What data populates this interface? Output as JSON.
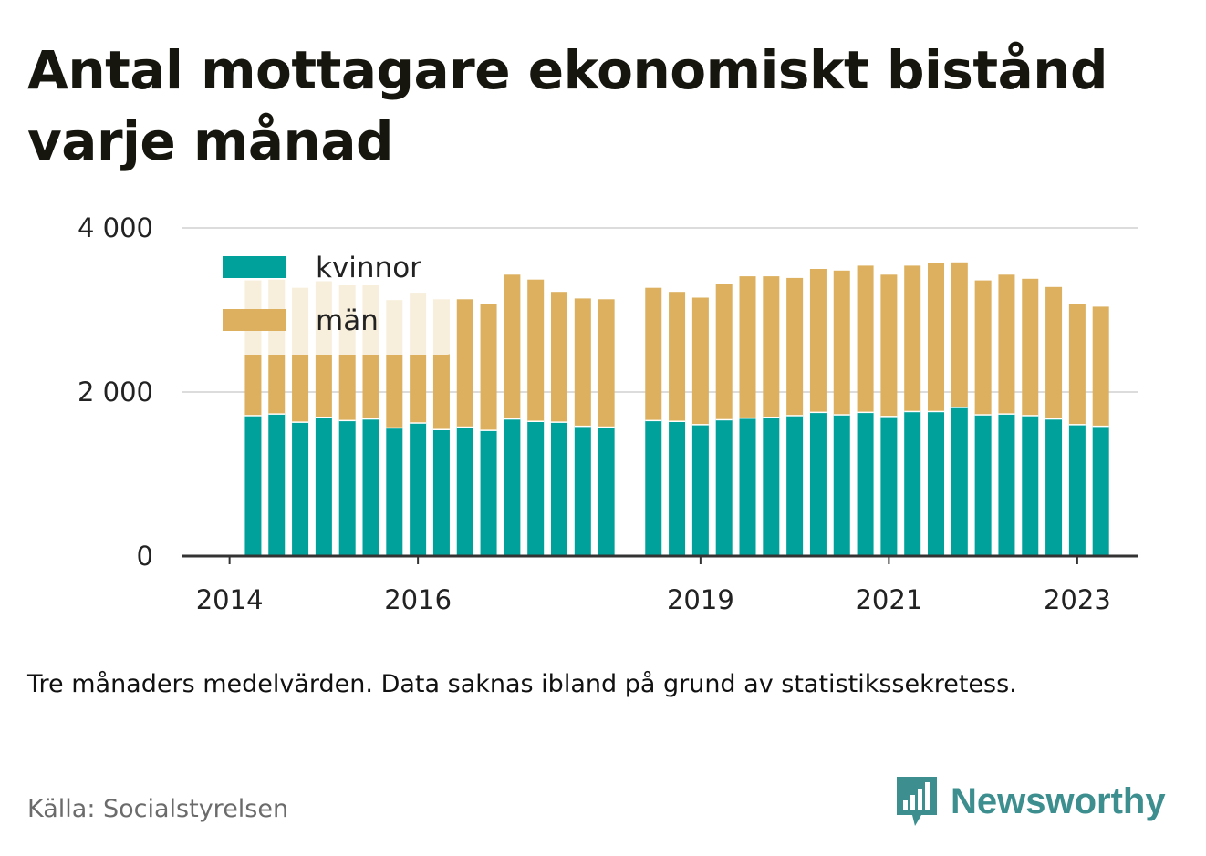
{
  "title": "Antal mottagare ekonomiskt bistånd varje månad",
  "subtitle": "Tre månaders medelvärden. Data saknas ibland på grund av statistikssekretess.",
  "source": "Källa: Socialstyrelsen",
  "brand": {
    "name": "Newsworthy",
    "icon": "bar-chart-speech-bubble-icon",
    "color": "#3d8f8f"
  },
  "chart_data": {
    "type": "bar",
    "stacked": true,
    "ylim": [
      0,
      4000
    ],
    "y_ticks": [
      0,
      2000,
      4000
    ],
    "y_tick_labels": [
      "0",
      "2 000",
      "4 000"
    ],
    "x_tick_labels": [
      "2014",
      "2016",
      "2019",
      "2021",
      "2023"
    ],
    "x_tick_positions": [
      2014.0,
      2016.0,
      2019.0,
      2021.0,
      2023.0
    ],
    "xlim": [
      2013.5,
      2023.65
    ],
    "grid": true,
    "legend_position": "top-left",
    "x": [
      2014.25,
      2014.5,
      2014.75,
      2015.0,
      2015.25,
      2015.5,
      2015.75,
      2016.0,
      2016.25,
      2016.5,
      2016.75,
      2017.0,
      2017.25,
      2017.5,
      2017.75,
      2018.0,
      2018.5,
      2018.75,
      2019.0,
      2019.25,
      2019.5,
      2019.75,
      2020.0,
      2020.25,
      2020.5,
      2020.75,
      2021.0,
      2021.25,
      2021.5,
      2021.75,
      2022.0,
      2022.25,
      2022.5,
      2022.75,
      2023.0,
      2023.25
    ],
    "series": [
      {
        "name": "kvinnor",
        "color": "#00a19a",
        "values": [
          1720,
          1740,
          1640,
          1700,
          1660,
          1680,
          1570,
          1630,
          1550,
          1580,
          1540,
          1680,
          1650,
          1640,
          1590,
          1580,
          1660,
          1650,
          1610,
          1670,
          1690,
          1700,
          1720,
          1760,
          1730,
          1760,
          1710,
          1770,
          1770,
          1820,
          1730,
          1740,
          1720,
          1680,
          1610,
          1590
        ]
      },
      {
        "name": "män",
        "color": "#dcb05e",
        "values": [
          1640,
          1630,
          1630,
          1650,
          1640,
          1620,
          1550,
          1580,
          1580,
          1550,
          1530,
          1750,
          1720,
          1580,
          1550,
          1550,
          1610,
          1570,
          1540,
          1650,
          1720,
          1710,
          1670,
          1740,
          1750,
          1780,
          1720,
          1770,
          1800,
          1760,
          1630,
          1690,
          1660,
          1600,
          1460,
          1450
        ]
      }
    ]
  }
}
